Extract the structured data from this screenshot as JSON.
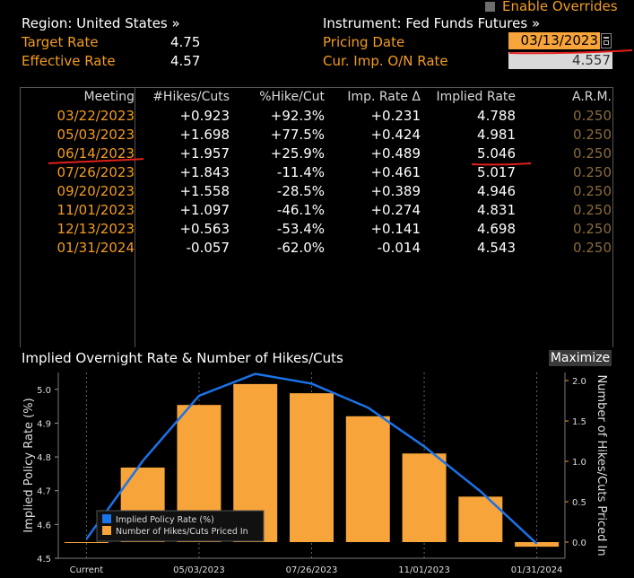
{
  "header": {
    "enable_overrides_label": "Enable Overrides",
    "region_label": "Region: United States »",
    "instrument_label": "Instrument: Fed Funds Futures »",
    "target_rate_label": "Target Rate",
    "target_rate_value": "4.75",
    "effective_rate_label": "Effective Rate",
    "effective_rate_value": "4.57",
    "pricing_date_label": "Pricing Date",
    "pricing_date_value": "03/13/2023",
    "cur_imp_label": "Cur. Imp. O/N Rate",
    "cur_imp_value": "4.557"
  },
  "table": {
    "columns": [
      "Meeting",
      "#Hikes/Cuts",
      "%Hike/Cut",
      "Imp. Rate Δ",
      "Implied Rate",
      "A.R.M."
    ],
    "rows": [
      {
        "meeting": "03/22/2023",
        "hikes": "+0.923",
        "pct": "+92.3%",
        "delta": "+0.231",
        "implied": "4.788",
        "arm": "0.250"
      },
      {
        "meeting": "05/03/2023",
        "hikes": "+1.698",
        "pct": "+77.5%",
        "delta": "+0.424",
        "implied": "4.981",
        "arm": "0.250"
      },
      {
        "meeting": "06/14/2023",
        "hikes": "+1.957",
        "pct": "+25.9%",
        "delta": "+0.489",
        "implied": "5.046",
        "arm": "0.250"
      },
      {
        "meeting": "07/26/2023",
        "hikes": "+1.843",
        "pct": "-11.4%",
        "delta": "+0.461",
        "implied": "5.017",
        "arm": "0.250"
      },
      {
        "meeting": "09/20/2023",
        "hikes": "+1.558",
        "pct": "-28.5%",
        "delta": "+0.389",
        "implied": "4.946",
        "arm": "0.250"
      },
      {
        "meeting": "11/01/2023",
        "hikes": "+1.097",
        "pct": "-46.1%",
        "delta": "+0.274",
        "implied": "4.831",
        "arm": "0.250"
      },
      {
        "meeting": "12/13/2023",
        "hikes": "+0.563",
        "pct": "-53.4%",
        "delta": "+0.141",
        "implied": "4.698",
        "arm": "0.250"
      },
      {
        "meeting": "01/31/2024",
        "hikes": "-0.057",
        "pct": "-62.0%",
        "delta": "-0.014",
        "implied": "4.543",
        "arm": "0.250"
      }
    ]
  },
  "chart": {
    "title": "Implied Overnight Rate & Number of Hikes/Cuts",
    "maximize_label": "Maximize"
  },
  "chart_data": {
    "type": "bar",
    "categories": [
      "Current",
      "03/22/2023",
      "05/03/2023",
      "06/14/2023",
      "07/26/2023",
      "09/20/2023",
      "11/01/2023",
      "12/13/2023",
      "01/31/2024"
    ],
    "x_tick_labels": [
      "Current",
      "05/03/2023",
      "07/26/2023",
      "11/01/2023",
      "01/31/2024"
    ],
    "series": [
      {
        "name": "Implied Policy Rate (%)",
        "type": "line",
        "axis": "left",
        "color": "#1a73e8",
        "values": [
          4.557,
          4.788,
          4.981,
          5.046,
          5.017,
          4.946,
          4.831,
          4.698,
          4.543
        ]
      },
      {
        "name": "Number of Hikes/Cuts Priced In",
        "type": "bar",
        "axis": "right",
        "color": "#f7a43a",
        "values": [
          0,
          0.923,
          1.698,
          1.957,
          1.843,
          1.558,
          1.097,
          0.563,
          -0.057
        ]
      }
    ],
    "ylabel_left": "Implied Policy Rate (%)",
    "ylabel_right": "Number of Hikes/Cuts Priced In",
    "ylim_left": [
      4.5,
      5.05
    ],
    "yticks_left": [
      "4.5",
      "4.6",
      "4.7",
      "4.8",
      "4.9",
      "5.0"
    ],
    "ylim_right": [
      -0.2,
      2.1
    ],
    "yticks_right": [
      "0.0",
      "0.5",
      "1.0",
      "1.5",
      "2.0"
    ],
    "legend_position": "bottom-left",
    "grid": "vertical dotted"
  },
  "colors": {
    "accent_orange": "#f39c1f",
    "bar_orange": "#f7a43a",
    "line_blue": "#1a73e8",
    "annotation_red": "#e0201b"
  }
}
